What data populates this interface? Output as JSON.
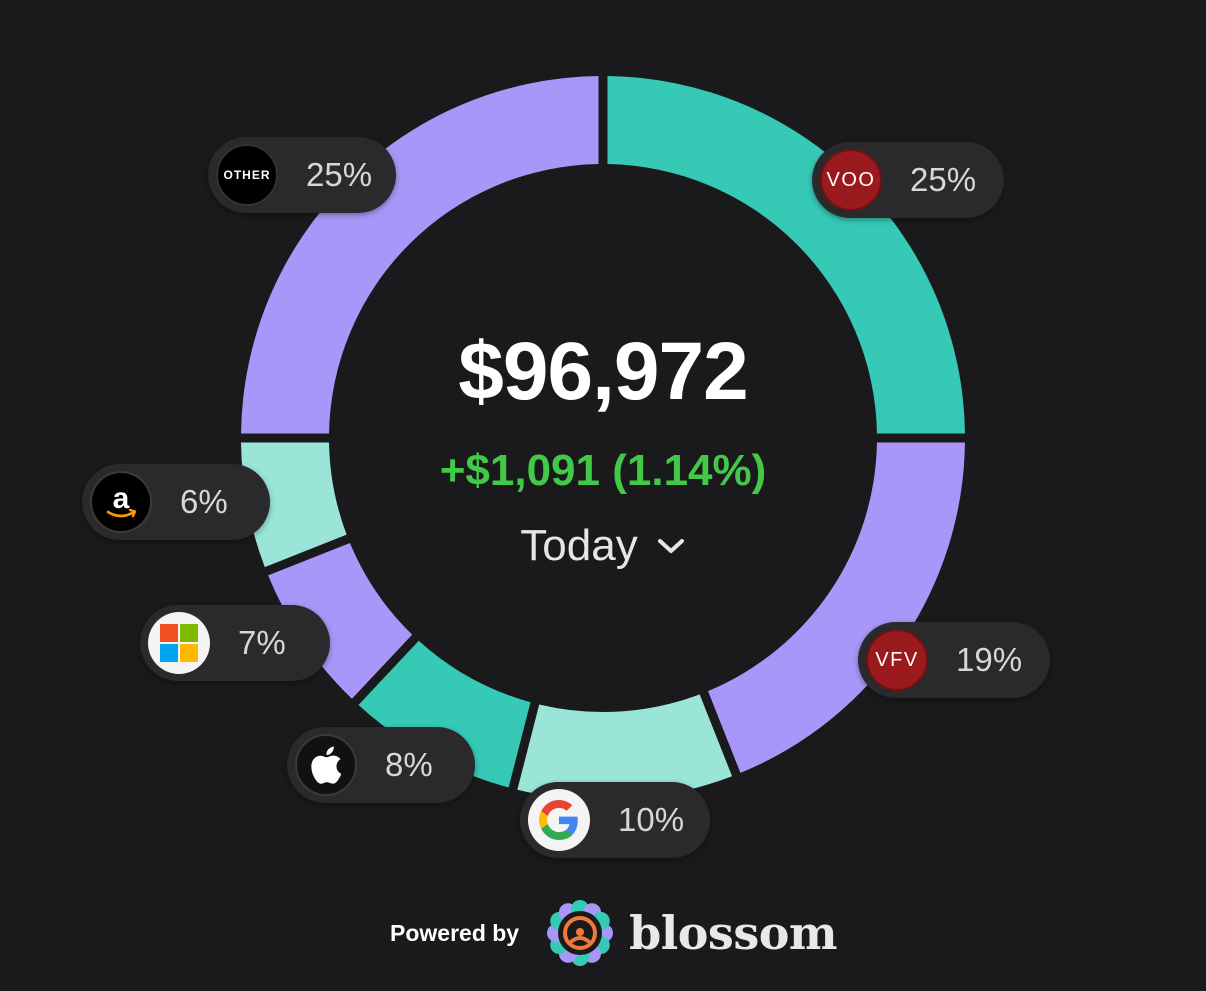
{
  "chart_data": {
    "type": "pie",
    "style": "donut",
    "categories": [
      "VOO",
      "VFV",
      "GOOGL",
      "AAPL",
      "MSFT",
      "AMZN",
      "OTHER"
    ],
    "values": [
      25,
      19,
      10,
      8,
      7,
      6,
      25
    ],
    "value_unit": "%",
    "colors": [
      "#36c9b6",
      "#a897f8",
      "#9be5d8",
      "#36c9b6",
      "#a897f8",
      "#9be5d8",
      "#a897f8"
    ],
    "labels": [
      "25%",
      "19%",
      "10%",
      "8%",
      "7%",
      "6%",
      "25%"
    ],
    "legend": "none"
  },
  "summary": {
    "total": "$96,972",
    "change": "+$1,091 (1.14%)",
    "period": "Today",
    "change_color": "#41c947"
  },
  "holdings": [
    {
      "ticker": "VOO",
      "logo_text": "VOO",
      "pct": "25%",
      "icon": "voo-logo"
    },
    {
      "ticker": "VFV",
      "logo_text": "VFV",
      "pct": "19%",
      "icon": "vfv-logo"
    },
    {
      "ticker": "GOOGL",
      "pct": "10%",
      "icon": "google-logo-icon"
    },
    {
      "ticker": "AAPL",
      "pct": "8%",
      "icon": "apple-logo-icon"
    },
    {
      "ticker": "MSFT",
      "pct": "7%",
      "icon": "microsoft-logo-icon"
    },
    {
      "ticker": "AMZN",
      "pct": "6%",
      "icon": "amazon-logo-icon"
    },
    {
      "ticker": "OTHER",
      "logo_text": "OTHER",
      "pct": "25%",
      "icon": "other-logo"
    }
  ],
  "footer": {
    "powered_by": "Powered by",
    "brand": "blossom",
    "brand_icon": "blossom-flower-icon"
  }
}
